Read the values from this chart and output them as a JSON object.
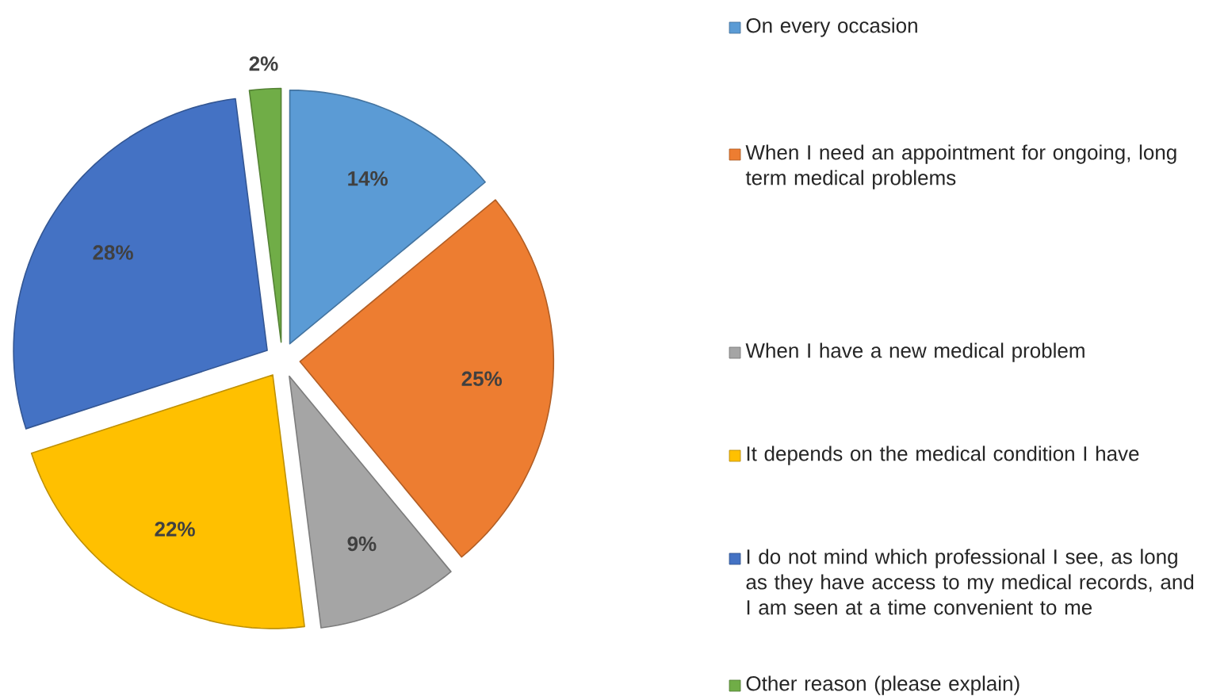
{
  "chart_data": {
    "type": "pie",
    "categories": [
      "On every occasion",
      "When I need an appointment for ongoing, long term medical problems",
      "When I have a new medical problem",
      "It depends on the medical condition I have",
      "I do not mind which professional I see, as long as they have access to my medical records, and I am seen at a time convenient to me",
      "Other reason (please explain)"
    ],
    "values": [
      14,
      25,
      9,
      22,
      28,
      2
    ],
    "value_labels": [
      "14%",
      "25%",
      "9%",
      "22%",
      "28%",
      "2%"
    ],
    "colors": [
      "#5b9bd5",
      "#ed7d31",
      "#a5a5a5",
      "#ffc000",
      "#4472c4",
      "#70ad47"
    ],
    "legend": "right"
  }
}
